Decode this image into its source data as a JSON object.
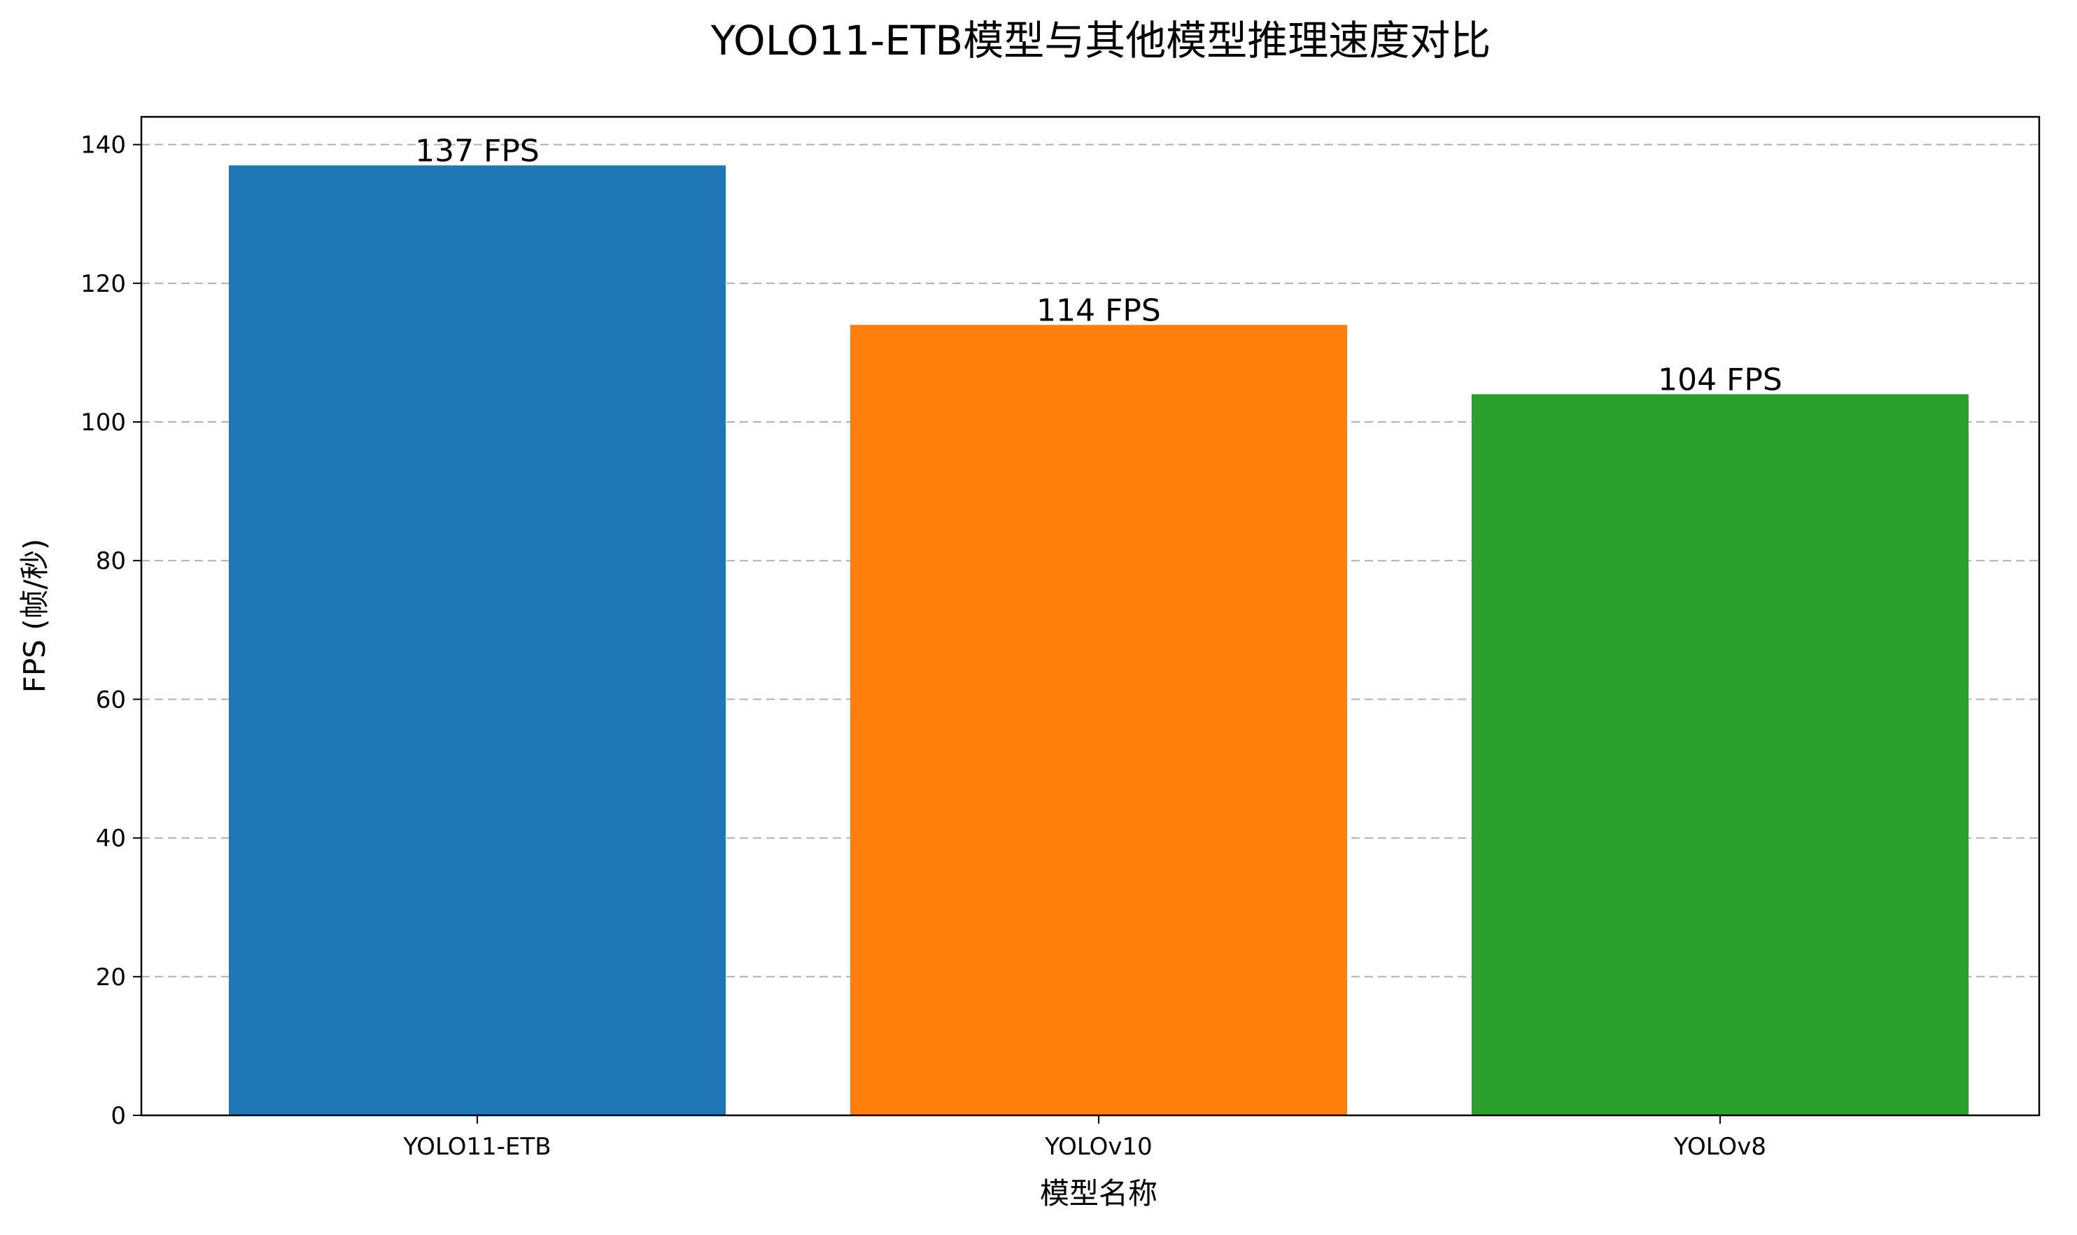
{
  "chart_data": {
    "type": "bar",
    "title": "YOLO11-ETB模型与其他模型推理速度对比",
    "xlabel": "模型名称",
    "ylabel": "FPS (帧/秒)",
    "categories": [
      "YOLO11-ETB",
      "YOLOv10",
      "YOLOv8"
    ],
    "values": [
      137,
      114,
      104
    ],
    "data_labels": [
      "137 FPS",
      "114 FPS",
      "104 FPS"
    ],
    "colors": [
      "#1f77b4",
      "#ff7f0e",
      "#2ca02c"
    ],
    "ylim": [
      0,
      144
    ],
    "yticks": [
      0,
      20,
      40,
      60,
      80,
      100,
      120,
      140
    ],
    "grid": "y-dashed",
    "legend": "none"
  }
}
